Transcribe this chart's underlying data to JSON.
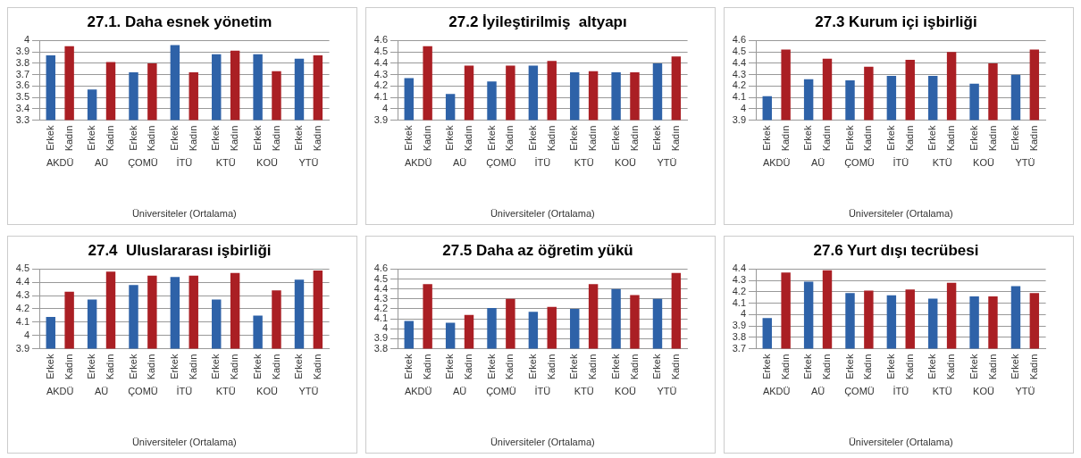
{
  "chart_data": [
    {
      "type": "bar",
      "title": "27.1. Daha esnek yönetim",
      "xlabel": "Üniversiteler (Ortalama)",
      "categories": [
        "AKDÜ",
        "AÜ",
        "ÇOMÜ",
        "İTÜ",
        "KTÜ",
        "KOÜ",
        "YTÜ"
      ],
      "series": [
        {
          "name": "Erkek",
          "color": "#2e62a8",
          "values": [
            3.87,
            3.57,
            3.72,
            3.96,
            3.88,
            3.88,
            3.84
          ]
        },
        {
          "name": "Kadın",
          "color": "#aa1f24",
          "values": [
            3.95,
            3.81,
            3.8,
            3.72,
            3.91,
            3.73,
            3.87
          ]
        }
      ],
      "ylim": [
        3.3,
        4
      ],
      "yticks": [
        3.3,
        3.4,
        3.5,
        3.6,
        3.7,
        3.8,
        3.9,
        4
      ],
      "grid": "y"
    },
    {
      "type": "bar",
      "title": "27.2 İyileştirilmiş  altyapı",
      "xlabel": "Üniversiteler (Ortalama)",
      "categories": [
        "AKDÜ",
        "AÜ",
        "ÇOMÜ",
        "İTÜ",
        "KTÜ",
        "KOÜ",
        "YTÜ"
      ],
      "series": [
        {
          "name": "Erkek",
          "color": "#2e62a8",
          "values": [
            4.27,
            4.13,
            4.24,
            4.38,
            4.32,
            4.32,
            4.4
          ]
        },
        {
          "name": "Kadın",
          "color": "#aa1f24",
          "values": [
            4.55,
            4.38,
            4.38,
            4.42,
            4.33,
            4.32,
            4.46
          ]
        }
      ],
      "ylim": [
        3.9,
        4.6
      ],
      "yticks": [
        3.9,
        4,
        4.1,
        4.2,
        4.3,
        4.4,
        4.5,
        4.6
      ],
      "grid": "y"
    },
    {
      "type": "bar",
      "title": "27.3 Kurum içi işbirliği",
      "xlabel": "Üniversiteler (Ortalama)",
      "categories": [
        "AKDÜ",
        "AÜ",
        "ÇOMÜ",
        "İTÜ",
        "KTÜ",
        "KOÜ",
        "YTÜ"
      ],
      "series": [
        {
          "name": "Erkek",
          "color": "#2e62a8",
          "values": [
            4.11,
            4.26,
            4.25,
            4.29,
            4.29,
            4.22,
            4.3
          ]
        },
        {
          "name": "Kadın",
          "color": "#aa1f24",
          "values": [
            4.52,
            4.44,
            4.37,
            4.43,
            4.5,
            4.4,
            4.52
          ]
        }
      ],
      "ylim": [
        3.9,
        4.6
      ],
      "yticks": [
        3.9,
        4,
        4.1,
        4.2,
        4.3,
        4.4,
        4.5,
        4.6
      ],
      "grid": "y"
    },
    {
      "type": "bar",
      "title": "27.4  Uluslararası işbirliği",
      "xlabel": "Üniversiteler (Ortalama)",
      "categories": [
        "AKDÜ",
        "AÜ",
        "ÇOMÜ",
        "İTÜ",
        "KTÜ",
        "KOÜ",
        "YTÜ"
      ],
      "series": [
        {
          "name": "Erkek",
          "color": "#2e62a8",
          "values": [
            4.14,
            4.27,
            4.38,
            4.44,
            4.27,
            4.15,
            4.42
          ]
        },
        {
          "name": "Kadın",
          "color": "#aa1f24",
          "values": [
            4.33,
            4.48,
            4.45,
            4.45,
            4.47,
            4.34,
            4.49
          ]
        }
      ],
      "ylim": [
        3.9,
        4.5
      ],
      "yticks": [
        3.9,
        4,
        4.1,
        4.2,
        4.3,
        4.4,
        4.5
      ],
      "grid": "y"
    },
    {
      "type": "bar",
      "title": "27.5 Daha az öğretim yükü",
      "xlabel": "Üniversiteler (Ortalama)",
      "categories": [
        "AKDÜ",
        "AÜ",
        "ÇOMÜ",
        "İTÜ",
        "KTÜ",
        "KOÜ",
        "YTÜ"
      ],
      "series": [
        {
          "name": "Erkek",
          "color": "#2e62a8",
          "values": [
            4.08,
            4.06,
            4.21,
            4.17,
            4.2,
            4.4,
            4.3
          ]
        },
        {
          "name": "Kadın",
          "color": "#aa1f24",
          "values": [
            4.45,
            4.14,
            4.3,
            4.22,
            4.45,
            4.34,
            4.56
          ]
        }
      ],
      "ylim": [
        3.8,
        4.6
      ],
      "yticks": [
        3.8,
        3.9,
        4,
        4.1,
        4.2,
        4.3,
        4.4,
        4.5,
        4.6
      ],
      "grid": "y"
    },
    {
      "type": "bar",
      "title": "27.6 Yurt dışı tecrübesi",
      "xlabel": "Üniversiteler (Ortalama)",
      "categories": [
        "AKDÜ",
        "AÜ",
        "ÇOMÜ",
        "İTÜ",
        "KTÜ",
        "KOÜ",
        "YTÜ"
      ],
      "series": [
        {
          "name": "Erkek",
          "color": "#2e62a8",
          "values": [
            3.97,
            4.29,
            4.19,
            4.17,
            4.14,
            4.16,
            4.25
          ]
        },
        {
          "name": "Kadın",
          "color": "#aa1f24",
          "values": [
            4.37,
            4.39,
            4.21,
            4.22,
            4.28,
            4.16,
            4.19
          ]
        }
      ],
      "ylim": [
        3.7,
        4.4
      ],
      "yticks": [
        3.7,
        3.8,
        3.9,
        4,
        4.1,
        4.2,
        4.3,
        4.4
      ],
      "grid": "y"
    }
  ]
}
